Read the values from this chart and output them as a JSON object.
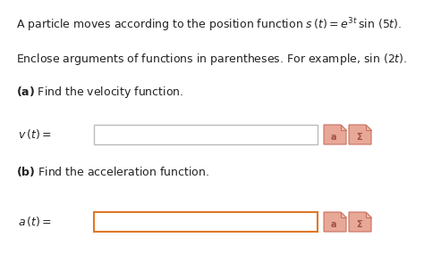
{
  "bg_color": "#ffffff",
  "fig_width": 4.74,
  "fig_height": 2.94,
  "dpi": 100,
  "line1": "A particle moves according to the position function $s\\,(t) = e^{3t}\\,\\sin\\,(5t).$",
  "line2": "Enclose arguments of functions in parentheses. For example, $\\sin\\,(2t)$.",
  "part_a": "\\textbf{(a)} Find the velocity function.",
  "part_b": "\\textbf{(b)} Find the acceleration function.",
  "var_a": "$v\\,(t) =$",
  "var_b": "$a\\,(t) =$",
  "box_a_edge": "#bbbbbb",
  "box_b_edge": "#e07828",
  "icon_face": "#e8a898",
  "icon_edge": "#c87060",
  "icon_dark": "#a05040",
  "text_color": "#222222",
  "fontsize": 9.0
}
